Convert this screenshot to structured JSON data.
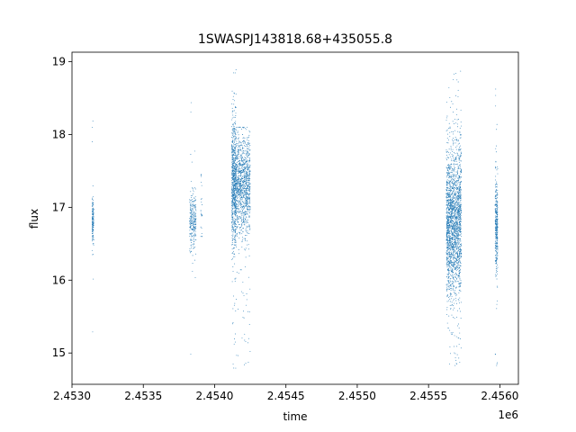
{
  "chart_data": {
    "type": "scatter",
    "title": "1SWASPJ143818.68+435055.8",
    "xlabel": "time",
    "ylabel": "flux",
    "x_offset_label": "1e6",
    "xlim": [
      2453000,
      2456130
    ],
    "ylim": [
      14.57,
      19.13
    ],
    "x_ticks": [
      {
        "value": 2453000,
        "label": "2.4530"
      },
      {
        "value": 2453500,
        "label": "2.4535"
      },
      {
        "value": 2454000,
        "label": "2.4540"
      },
      {
        "value": 2454500,
        "label": "2.4545"
      },
      {
        "value": 2455000,
        "label": "2.4550"
      },
      {
        "value": 2455500,
        "label": "2.4555"
      },
      {
        "value": 2456000,
        "label": "2.4560"
      }
    ],
    "y_ticks": [
      {
        "value": 15,
        "label": "15"
      },
      {
        "value": 16,
        "label": "16"
      },
      {
        "value": 17,
        "label": "17"
      },
      {
        "value": 18,
        "label": "18"
      },
      {
        "value": 19,
        "label": "19"
      }
    ],
    "grid": false,
    "marker_color": "#1f77b4",
    "clusters": [
      {
        "x_min": 2453141,
        "x_max": 2453153,
        "y_center": 16.8,
        "y_sd": 0.17,
        "y_min": 14.93,
        "y_max": 18.45,
        "points": 150
      },
      {
        "x_min": 2453825,
        "x_max": 2453870,
        "y_center": 16.8,
        "y_sd": 0.2,
        "y_min": 14.85,
        "y_max": 18.55,
        "points": 260
      },
      {
        "x_min": 2453903,
        "x_max": 2453912,
        "y_center": 17.0,
        "y_sd": 0.3,
        "y_min": 16.6,
        "y_max": 17.45,
        "points": 25
      },
      {
        "x_min": 2454120,
        "x_max": 2454150,
        "y_center": 17.3,
        "y_sd": 0.45,
        "y_min": 14.78,
        "y_max": 18.95,
        "points": 750
      },
      {
        "x_min": 2454150,
        "x_max": 2454250,
        "y_center": 17.3,
        "y_sd": 0.33,
        "y_min": 14.8,
        "y_max": 18.1,
        "points": 1100
      },
      {
        "x_min": 2455625,
        "x_max": 2455730,
        "y_center": 16.8,
        "y_sd": 0.5,
        "y_min": 14.78,
        "y_max": 18.88,
        "points": 2100
      },
      {
        "x_min": 2455967,
        "x_max": 2455985,
        "y_center": 16.75,
        "y_sd": 0.32,
        "y_min": 14.78,
        "y_max": 18.8,
        "points": 350
      }
    ]
  }
}
